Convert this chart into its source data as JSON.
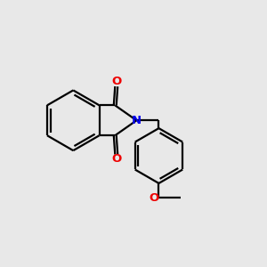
{
  "bg_color": "#e8e8e8",
  "bond_color": "#000000",
  "N_color": "#0000ee",
  "O_color": "#ee0000",
  "line_width": 1.6,
  "font_size": 9.5,
  "fig_size": [
    3.0,
    3.0
  ],
  "dpi": 100,
  "xlim": [
    0,
    10
  ],
  "ylim": [
    0,
    10
  ]
}
